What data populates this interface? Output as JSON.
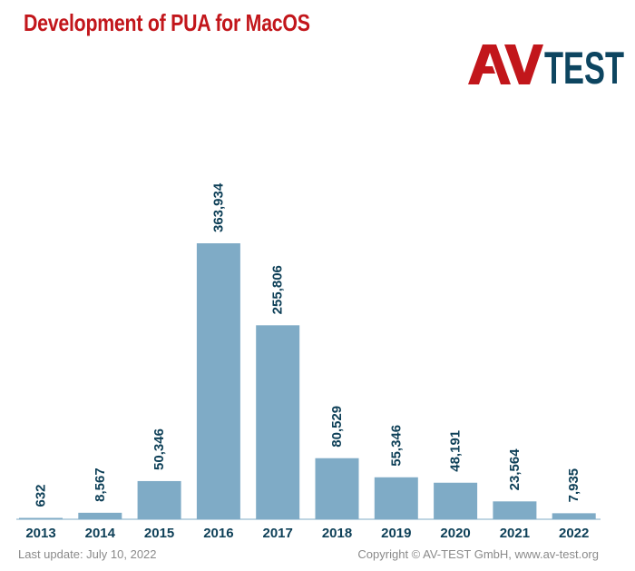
{
  "title": "Development of PUA for MacOS",
  "logo": {
    "text_av": "AV",
    "text_test": "TEST",
    "colors": {
      "av": "#c2161b",
      "test": "#0d4560"
    }
  },
  "footer": {
    "last_update": "Last update: July 10, 2022",
    "copyright": "Copyright © AV-TEST GmbH, www.av-test.org"
  },
  "chart_data": {
    "type": "bar",
    "categories": [
      "2013",
      "2014",
      "2015",
      "2016",
      "2017",
      "2018",
      "2019",
      "2020",
      "2021",
      "2022"
    ],
    "values": [
      632,
      8567,
      50346,
      363934,
      255806,
      80529,
      55346,
      48191,
      23564,
      7935
    ],
    "value_labels": [
      "632",
      "8,567",
      "50,346",
      "363,934",
      "255,806",
      "80,529",
      "55,346",
      "48,191",
      "23,564",
      "7,935"
    ],
    "xlabel": "",
    "ylabel": "",
    "ylim": [
      0,
      363934
    ],
    "grid": false,
    "legend": "none",
    "colors": {
      "bar": "#7fabc6",
      "label": "#0d3f57",
      "axis": "#7fabc6"
    }
  }
}
